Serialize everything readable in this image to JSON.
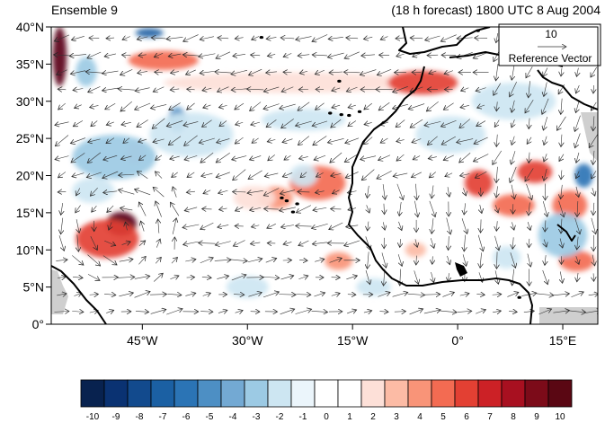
{
  "header": {
    "left_title": "Ensemble 9",
    "right_title": "(18 h forecast) 1800 UTC 8 Aug 2004"
  },
  "ref_vector": {
    "value": "10",
    "label": "Reference Vector"
  },
  "map": {
    "lon_range": [
      -58,
      20
    ],
    "lat_range": [
      0,
      40
    ],
    "x_ticks": [
      {
        "lon": -45,
        "label": "45°W"
      },
      {
        "lon": -30,
        "label": "30°W"
      },
      {
        "lon": -15,
        "label": "15°W"
      },
      {
        "lon": 0,
        "label": "0°"
      },
      {
        "lon": 15,
        "label": "15°E"
      }
    ],
    "y_ticks": [
      {
        "lat": 40,
        "label": "40°N"
      },
      {
        "lat": 35,
        "label": "35°N"
      },
      {
        "lat": 30,
        "label": "30°N"
      },
      {
        "lat": 25,
        "label": "25°N"
      },
      {
        "lat": 20,
        "label": "20°N"
      },
      {
        "lat": 15,
        "label": "15°N"
      },
      {
        "lat": 10,
        "label": "10°N"
      },
      {
        "lat": 5,
        "label": "5°N"
      },
      {
        "lat": 0,
        "label": "0°"
      }
    ],
    "anomaly_blobs": [
      {
        "lon": -56.8,
        "lat": 36,
        "rlon": 1.0,
        "rlat": 4,
        "level": 10
      },
      {
        "lon": -48,
        "lat": 13.5,
        "rlon": 2.2,
        "rlat": 1.6,
        "level": 10
      },
      {
        "lon": -50,
        "lat": 11.5,
        "rlon": 4.5,
        "rlat": 2.6,
        "level": 6
      },
      {
        "lon": -42,
        "lat": 35.5,
        "rlon": 5,
        "rlat": 1.3,
        "level": 5
      },
      {
        "lon": -24,
        "lat": 32.5,
        "rlon": 18,
        "rlat": 1.4,
        "level": 2
      },
      {
        "lon": -5,
        "lat": 32.5,
        "rlon": 5,
        "rlat": 1.6,
        "level": 6
      },
      {
        "lon": -20,
        "lat": 19,
        "rlon": 4,
        "rlat": 2.3,
        "level": 5
      },
      {
        "lon": -26,
        "lat": 17,
        "rlon": 2.5,
        "rlat": 1.5,
        "level": 4
      },
      {
        "lon": -29,
        "lat": 17,
        "rlon": 3,
        "rlat": 1.6,
        "level": 2
      },
      {
        "lon": -17,
        "lat": 8.5,
        "rlon": 2,
        "rlat": 1.2,
        "level": 4
      },
      {
        "lon": 3,
        "lat": 19,
        "rlon": 2,
        "rlat": 1.8,
        "level": 6
      },
      {
        "lon": 8,
        "lat": 16,
        "rlon": 3,
        "rlat": 1.5,
        "level": 5
      },
      {
        "lon": 11,
        "lat": 20.5,
        "rlon": 2.5,
        "rlat": 1.5,
        "level": 6
      },
      {
        "lon": 16,
        "lat": 16,
        "rlon": 2.5,
        "rlat": 2,
        "level": 5
      },
      {
        "lon": 17,
        "lat": 8.5,
        "rlon": 2.5,
        "rlat": 1.4,
        "level": 5
      },
      {
        "lon": -46,
        "lat": 23,
        "rlon": 1.3,
        "rlat": 1.5,
        "level": 2
      },
      {
        "lon": -6,
        "lat": 10,
        "rlon": 1.5,
        "rlat": 1,
        "level": 3
      },
      {
        "lon": -44,
        "lat": 39.2,
        "rlon": 2,
        "rlat": 0.6,
        "level": -7
      },
      {
        "lon": -53,
        "lat": 34,
        "rlon": 1.5,
        "rlat": 2,
        "level": -3
      },
      {
        "lon": -40,
        "lat": 27.5,
        "rlon": 1.3,
        "rlat": 1.7,
        "level": -5
      },
      {
        "lon": -38,
        "lat": 25.5,
        "rlon": 6,
        "rlat": 3,
        "level": -2
      },
      {
        "lon": -49,
        "lat": 22.5,
        "rlon": 6,
        "rlat": 3,
        "level": -3
      },
      {
        "lon": -52,
        "lat": 18,
        "rlon": 3,
        "rlat": 1.7,
        "level": -2
      },
      {
        "lon": -22,
        "lat": 27.5,
        "rlon": 6,
        "rlat": 1.5,
        "level": -2
      },
      {
        "lon": -22,
        "lat": 20,
        "rlon": 2,
        "rlat": 1.5,
        "level": -2
      },
      {
        "lon": -1,
        "lat": 25.5,
        "rlon": 5,
        "rlat": 2.5,
        "level": -2
      },
      {
        "lon": 8,
        "lat": 30,
        "rlon": 6,
        "rlat": 2.5,
        "level": -2
      },
      {
        "lon": 18,
        "lat": 20,
        "rlon": 1.3,
        "rlat": 1.6,
        "level": -6
      },
      {
        "lon": 15,
        "lat": 12,
        "rlon": 3.5,
        "rlat": 3,
        "level": -3
      },
      {
        "lon": 7,
        "lat": 9,
        "rlon": 2,
        "rlat": 1.5,
        "level": -2
      },
      {
        "lon": -12,
        "lat": 5,
        "rlon": 2.5,
        "rlat": 1.2,
        "level": -2
      },
      {
        "lon": -30,
        "lat": 5,
        "rlon": 3,
        "rlat": 1.5,
        "level": -2
      }
    ],
    "islands": [
      {
        "lon": -18.2,
        "lat": 28.4
      },
      {
        "lon": -16.6,
        "lat": 28.2
      },
      {
        "lon": -15.5,
        "lat": 28.1
      },
      {
        "lon": -14,
        "lat": 28.6
      },
      {
        "lon": -23.5,
        "lat": 15.1
      },
      {
        "lon": -24.4,
        "lat": 16.6
      },
      {
        "lon": -22.9,
        "lat": 16.2
      },
      {
        "lon": -25.1,
        "lat": 17.0
      },
      {
        "lon": -28,
        "lat": 38.6
      },
      {
        "lon": -16.9,
        "lat": 32.7
      },
      {
        "lon": 8.8,
        "lat": 3.6
      },
      {
        "lon": 2.9,
        "lat": 39.5
      },
      {
        "lon": 9.2,
        "lat": 39.8
      },
      {
        "lon": 12.5,
        "lat": 37.5
      }
    ]
  },
  "colorbar": {
    "labels": [
      "-10",
      "-9",
      "-8",
      "-7",
      "-6",
      "-5",
      "-4",
      "-3",
      "-2",
      "-1",
      "0",
      "1",
      "2",
      "3",
      "4",
      "5",
      "6",
      "7",
      "8",
      "9",
      "10"
    ],
    "colors": [
      "#08224f",
      "#0a3272",
      "#124a8d",
      "#1b60a3",
      "#2b74b5",
      "#4d8fc4",
      "#73a9d3",
      "#9ccae4",
      "#cde6f2",
      "#ebf5fb",
      "#ffffff",
      "#ffffff",
      "#fde0d8",
      "#fcbba5",
      "#f99478",
      "#f36b52",
      "#e34033",
      "#cc2126",
      "#a81020",
      "#7c0b19",
      "#5a0713"
    ]
  }
}
